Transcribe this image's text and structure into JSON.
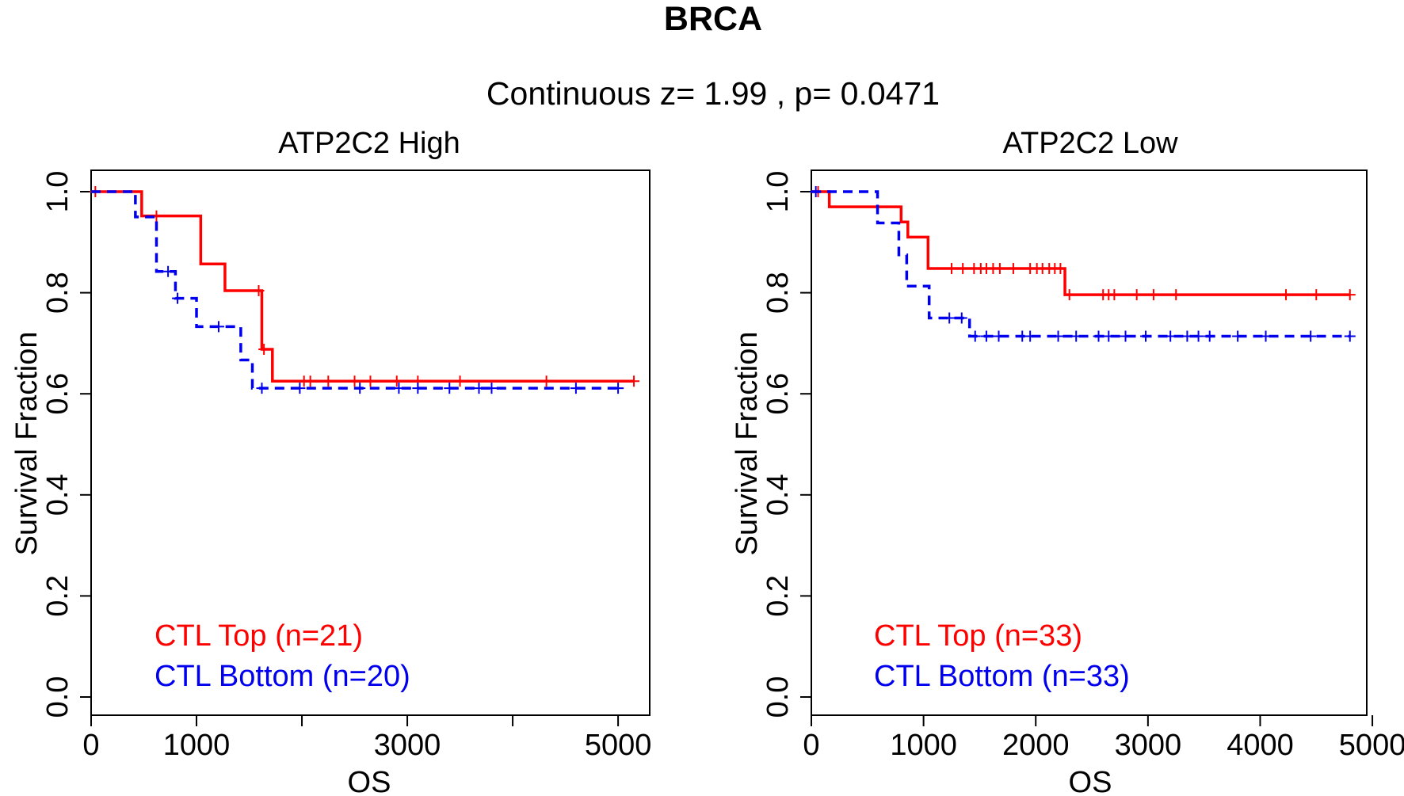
{
  "figure": {
    "title": "BRCA",
    "subtitle": "Continuous z= 1.99 , p= 0.0471"
  },
  "colors": {
    "top": "#ff0000",
    "bottom": "#0000ee",
    "axis": "#000000"
  },
  "chart_data": [
    {
      "type": "line",
      "title": "ATP2C2 High",
      "xlabel": "OS",
      "ylabel": "Survival Fraction",
      "xlim": [
        0,
        5300
      ],
      "ylim": [
        0,
        1
      ],
      "xticks": [
        0,
        1000,
        2000,
        3000,
        4000,
        5000
      ],
      "xtick_labels": [
        "0",
        "1000",
        "",
        "3000",
        "",
        "5000"
      ],
      "yticks": [
        0,
        0.2,
        0.4,
        0.6,
        0.8,
        1
      ],
      "ytick_labels": [
        "0.0",
        "0.2",
        "0.4",
        "0.6",
        "0.8",
        "1.0"
      ],
      "legend": [
        "CTL Top (n=21)",
        "CTL Bottom (n=20)"
      ],
      "series": [
        {
          "name": "CTL Top (n=21)",
          "style": "solid",
          "steps": [
            [
              0,
              1.0
            ],
            [
              480,
              0.952
            ],
            [
              1040,
              0.857
            ],
            [
              1270,
              0.804
            ],
            [
              1620,
              0.688
            ],
            [
              1720,
              0.625
            ],
            [
              5150,
              0.625
            ]
          ],
          "censor": [
            [
              40,
              1.0
            ],
            [
              620,
              0.952
            ],
            [
              1590,
              0.804
            ],
            [
              1640,
              0.688
            ],
            [
              2020,
              0.625
            ],
            [
              2080,
              0.625
            ],
            [
              2250,
              0.625
            ],
            [
              2500,
              0.625
            ],
            [
              2650,
              0.625
            ],
            [
              2900,
              0.625
            ],
            [
              3100,
              0.625
            ],
            [
              3500,
              0.625
            ],
            [
              4320,
              0.625
            ],
            [
              5150,
              0.625
            ]
          ]
        },
        {
          "name": "CTL Bottom (n=20)",
          "style": "dashed",
          "steps": [
            [
              0,
              1.0
            ],
            [
              420,
              0.95
            ],
            [
              620,
              0.842
            ],
            [
              800,
              0.789
            ],
            [
              1000,
              0.733
            ],
            [
              1420,
              0.667
            ],
            [
              1530,
              0.611
            ],
            [
              5000,
              0.611
            ]
          ],
          "censor": [
            [
              730,
              0.842
            ],
            [
              820,
              0.789
            ],
            [
              1210,
              0.733
            ],
            [
              1620,
              0.611
            ],
            [
              1980,
              0.611
            ],
            [
              2550,
              0.611
            ],
            [
              2920,
              0.611
            ],
            [
              3100,
              0.611
            ],
            [
              3400,
              0.611
            ],
            [
              3680,
              0.611
            ],
            [
              3800,
              0.611
            ],
            [
              4600,
              0.611
            ],
            [
              5000,
              0.611
            ]
          ]
        }
      ]
    },
    {
      "type": "line",
      "title": "ATP2C2 Low",
      "xlabel": "OS",
      "ylabel": "Survival Fraction",
      "xlim": [
        0,
        4950
      ],
      "ylim": [
        0,
        1
      ],
      "xticks": [
        0,
        1000,
        2000,
        3000,
        4000,
        5000
      ],
      "xtick_labels": [
        "0",
        "1000",
        "2000",
        "3000",
        "4000",
        "5000"
      ],
      "yticks": [
        0,
        0.2,
        0.4,
        0.6,
        0.8,
        1
      ],
      "ytick_labels": [
        "0.0",
        "0.2",
        "0.4",
        "0.6",
        "0.8",
        "1.0"
      ],
      "legend": [
        "CTL Top (n=33)",
        "CTL Bottom (n=33)"
      ],
      "series": [
        {
          "name": "CTL Top (n=33)",
          "style": "solid",
          "steps": [
            [
              0,
              1.0
            ],
            [
              160,
              0.97
            ],
            [
              800,
              0.94
            ],
            [
              860,
              0.91
            ],
            [
              1040,
              0.848
            ],
            [
              2260,
              0.796
            ],
            [
              4800,
              0.796
            ]
          ],
          "censor": [
            [
              60,
              1.0
            ],
            [
              1250,
              0.848
            ],
            [
              1350,
              0.848
            ],
            [
              1450,
              0.848
            ],
            [
              1510,
              0.848
            ],
            [
              1560,
              0.848
            ],
            [
              1620,
              0.848
            ],
            [
              1680,
              0.848
            ],
            [
              1800,
              0.848
            ],
            [
              1950,
              0.848
            ],
            [
              2010,
              0.848
            ],
            [
              2060,
              0.848
            ],
            [
              2120,
              0.848
            ],
            [
              2170,
              0.848
            ],
            [
              2220,
              0.848
            ],
            [
              2300,
              0.796
            ],
            [
              2600,
              0.796
            ],
            [
              2650,
              0.796
            ],
            [
              2700,
              0.796
            ],
            [
              2900,
              0.796
            ],
            [
              3050,
              0.796
            ],
            [
              3250,
              0.796
            ],
            [
              4230,
              0.796
            ],
            [
              4500,
              0.796
            ],
            [
              4800,
              0.796
            ]
          ]
        },
        {
          "name": "CTL Bottom (n=33)",
          "style": "dashed",
          "steps": [
            [
              0,
              1.0
            ],
            [
              590,
              0.938
            ],
            [
              780,
              0.875
            ],
            [
              850,
              0.813
            ],
            [
              1050,
              0.75
            ],
            [
              1410,
              0.714
            ],
            [
              4800,
              0.714
            ]
          ],
          "censor": [
            [
              40,
              1.0
            ],
            [
              1230,
              0.75
            ],
            [
              1340,
              0.75
            ],
            [
              1460,
              0.714
            ],
            [
              1560,
              0.714
            ],
            [
              1670,
              0.714
            ],
            [
              1880,
              0.714
            ],
            [
              1950,
              0.714
            ],
            [
              2200,
              0.714
            ],
            [
              2360,
              0.714
            ],
            [
              2560,
              0.714
            ],
            [
              2650,
              0.714
            ],
            [
              2800,
              0.714
            ],
            [
              2980,
              0.714
            ],
            [
              3200,
              0.714
            ],
            [
              3350,
              0.714
            ],
            [
              3450,
              0.714
            ],
            [
              3550,
              0.714
            ],
            [
              3800,
              0.714
            ],
            [
              4050,
              0.714
            ],
            [
              4450,
              0.714
            ],
            [
              4800,
              0.714
            ]
          ]
        }
      ]
    }
  ]
}
